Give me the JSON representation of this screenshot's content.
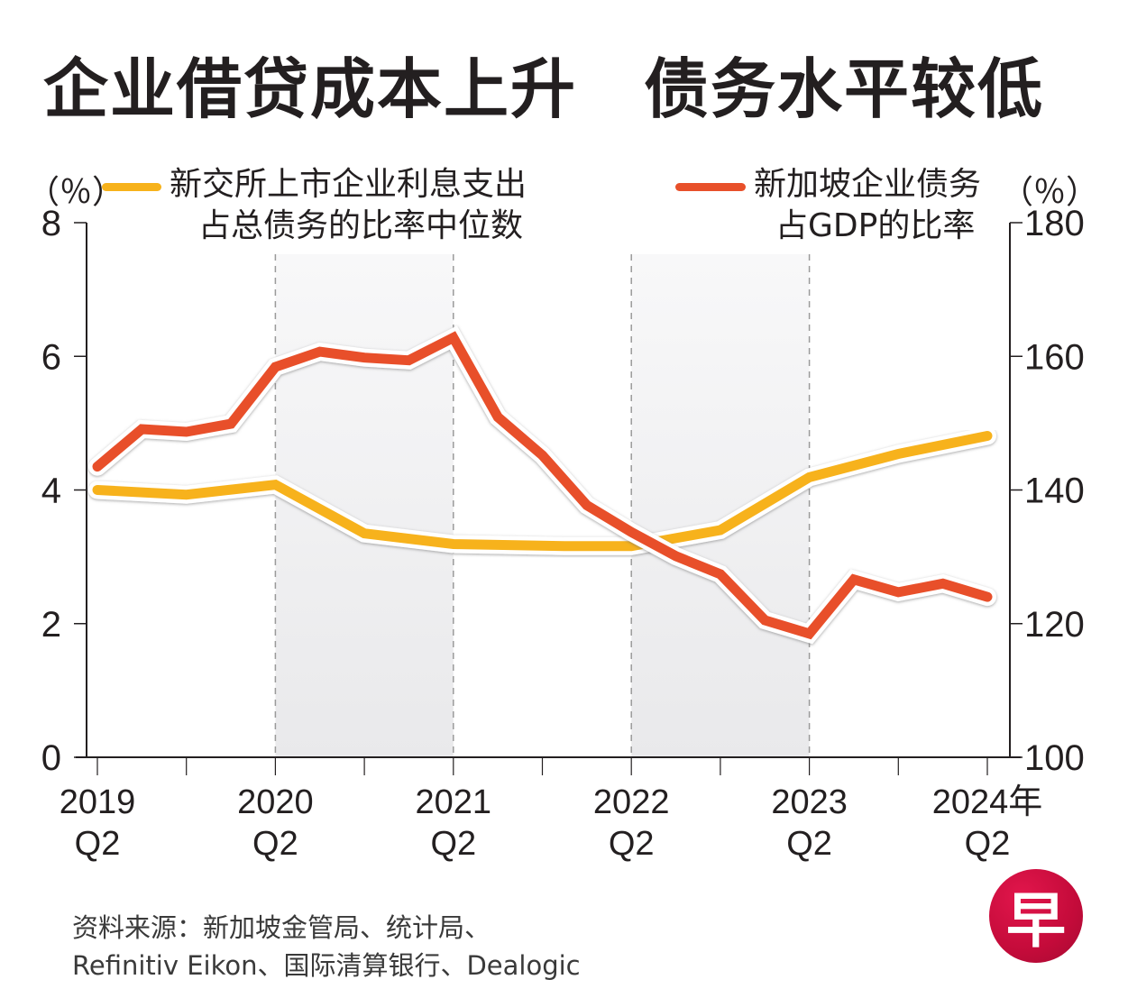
{
  "title": "企业借贷成本上升　债务水平较低",
  "legend": {
    "left_unit": "（％）",
    "right_unit": "（％）",
    "yellow_line1": "新交所上市企业利息支出",
    "yellow_line2": "占总债务的比率中位数",
    "red_line1": "新加坡企业债务",
    "red_line2": "占GDP的比率"
  },
  "source_line1": "资料来源：新加坡金管局、统计局、",
  "source_line2": "Refinitiv Eikon、国际清算银行、Dealogic",
  "logo_char": "早",
  "colors": {
    "yellow": "#f7b21b",
    "red": "#e8502a",
    "shade": "#efeff0",
    "axis": "#231f20",
    "grid_dash": "#9a9a9a"
  },
  "chart_data": {
    "type": "line",
    "title": "企业借贷成本上升　债务水平较低",
    "x_quarters": [
      "2019Q2",
      "2019Q3",
      "2019Q4",
      "2020Q1",
      "2020Q2",
      "2020Q3",
      "2020Q4",
      "2021Q1",
      "2021Q2",
      "2021Q3",
      "2021Q4",
      "2022Q1",
      "2022Q2",
      "2022Q3",
      "2022Q4",
      "2023Q1",
      "2023Q2",
      "2023Q3",
      "2023Q4",
      "2024Q1",
      "2024Q2"
    ],
    "x_tick_labels": [
      {
        "line1": "2019",
        "line2": "Q2",
        "index": 0
      },
      {
        "line1": "2020",
        "line2": "Q2",
        "index": 4
      },
      {
        "line1": "2021",
        "line2": "Q2",
        "index": 8
      },
      {
        "line1": "2022",
        "line2": "Q2",
        "index": 12
      },
      {
        "line1": "2023",
        "line2": "Q2",
        "index": 16
      },
      {
        "line1": "2024年",
        "line2": "Q2",
        "index": 20
      }
    ],
    "shaded_ranges": [
      [
        4,
        8
      ],
      [
        12,
        16
      ]
    ],
    "y_left": {
      "label": "（％）",
      "range": [
        0,
        8
      ],
      "ticks": [
        0,
        2,
        4,
        6,
        8
      ]
    },
    "y_right": {
      "label": "（％）",
      "range": [
        100,
        180
      ],
      "ticks": [
        100,
        120,
        140,
        160,
        180
      ]
    },
    "series": [
      {
        "name": "新交所上市企业利息支出占总债务的比率中位数",
        "axis": "left",
        "color": "#f7b21b",
        "x_index": [
          0,
          2,
          4,
          6,
          8,
          10.5,
          12,
          14,
          16,
          18,
          20
        ],
        "values": [
          4.0,
          3.93,
          4.08,
          3.35,
          3.19,
          3.16,
          3.16,
          3.4,
          4.19,
          4.54,
          4.81
        ]
      },
      {
        "name": "新加坡企业债务占GDP的比率",
        "axis": "right",
        "color": "#e8502a",
        "x_index": [
          0,
          1,
          2,
          3,
          4,
          5,
          6,
          7,
          8,
          9,
          10,
          11,
          12,
          13,
          14,
          15,
          16,
          17,
          18,
          19,
          20
        ],
        "values": [
          143.5,
          149.1,
          148.7,
          149.9,
          158.4,
          160.7,
          159.8,
          159.4,
          162.8,
          150.9,
          145.2,
          137.7,
          133.7,
          130.1,
          127.4,
          120.5,
          118.5,
          126.6,
          124.7,
          126.0,
          124.0
        ]
      }
    ],
    "grid": false,
    "legend_position": "top"
  }
}
